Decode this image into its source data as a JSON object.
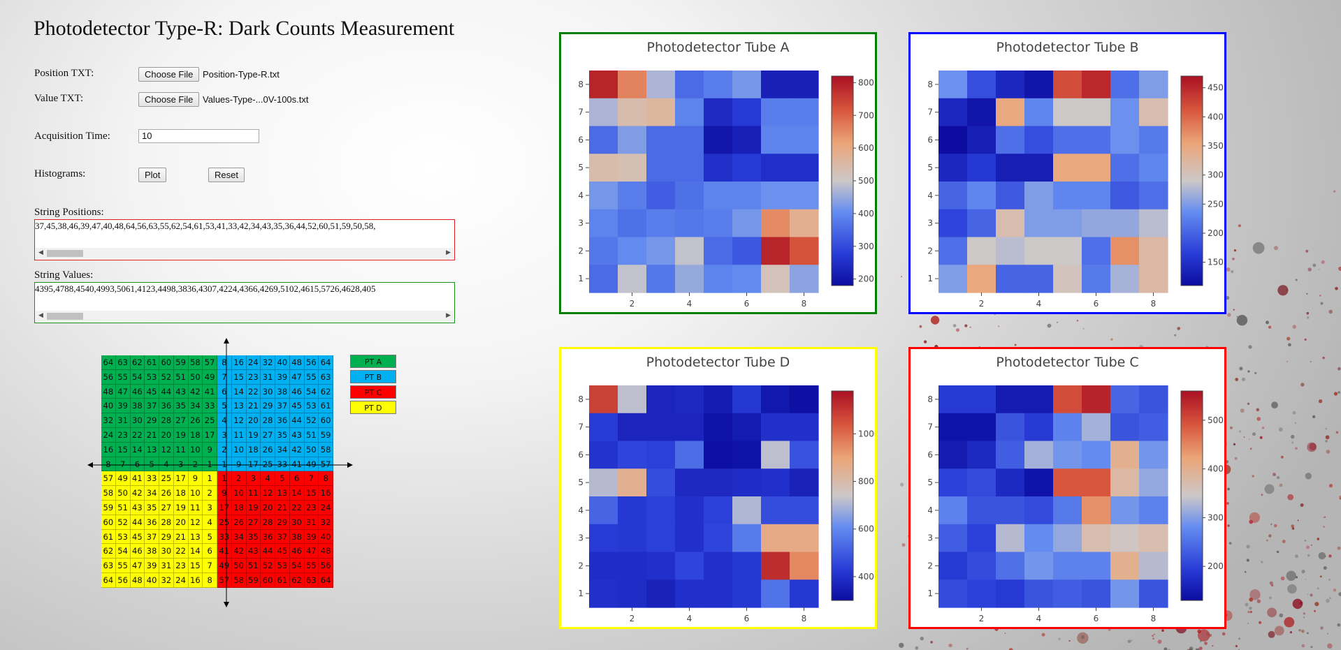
{
  "page": {
    "title": "Photodetector Type-R: Dark Counts Measurement"
  },
  "form": {
    "position_label": "Position TXT:",
    "position_button": "Choose File",
    "position_file": "Position-Type-R.txt",
    "value_label": "Value TXT:",
    "value_button": "Choose File",
    "value_file": "Values-Type-...0V-100s.txt",
    "acq_label": "Acquisition Time:",
    "acq_value": "10",
    "hist_label": "Histograms:",
    "plot_button": "Plot",
    "reset_button": "Reset",
    "str_positions_label": "String Positions:",
    "str_positions_value": "37,45,38,46,39,47,40,48,64,56,63,55,62,54,61,53,41,33,42,34,43,35,36,44,52,60,51,59,50,58,",
    "str_values_label": "String Values:",
    "str_values_value": "4395,4788,4540,4993,5061,4123,4498,3836,4307,4224,4366,4269,5102,4615,5726,4628,405"
  },
  "legend": [
    {
      "label": "PT A",
      "color": "#00b050"
    },
    {
      "label": "PT B",
      "color": "#00b0f0"
    },
    {
      "label": "PT C",
      "color": "#ff0000"
    },
    {
      "label": "PT D",
      "color": "#ffff00"
    }
  ],
  "channel_map": {
    "quadrant_colors": {
      "A": "#00b050",
      "B": "#00b0f0",
      "C": "#ff0000",
      "D": "#ffff00"
    },
    "rows": [
      [
        "64",
        "63",
        "62",
        "61",
        "60",
        "59",
        "58",
        "57",
        "8",
        "16",
        "24",
        "32",
        "40",
        "48",
        "56",
        "64"
      ],
      [
        "56",
        "55",
        "54",
        "53",
        "52",
        "51",
        "50",
        "49",
        "7",
        "15",
        "23",
        "31",
        "39",
        "47",
        "55",
        "63"
      ],
      [
        "48",
        "47",
        "46",
        "45",
        "44",
        "43",
        "42",
        "41",
        "6",
        "14",
        "22",
        "30",
        "38",
        "46",
        "54",
        "62"
      ],
      [
        "40",
        "39",
        "38",
        "37",
        "36",
        "35",
        "34",
        "33",
        "5",
        "13",
        "21",
        "29",
        "37",
        "45",
        "53",
        "61"
      ],
      [
        "32",
        "31",
        "30",
        "29",
        "28",
        "27",
        "26",
        "25",
        "4",
        "12",
        "20",
        "28",
        "36",
        "44",
        "52",
        "60"
      ],
      [
        "24",
        "23",
        "22",
        "21",
        "20",
        "19",
        "18",
        "17",
        "3",
        "11",
        "19",
        "27",
        "35",
        "43",
        "51",
        "59"
      ],
      [
        "16",
        "15",
        "14",
        "13",
        "12",
        "11",
        "10",
        "9",
        "2",
        "10",
        "18",
        "26",
        "34",
        "42",
        "50",
        "58"
      ],
      [
        "8",
        "7",
        "6",
        "5",
        "4",
        "3",
        "2",
        "1",
        "1",
        "9",
        "17",
        "25",
        "33",
        "41",
        "49",
        "57"
      ],
      [
        "57",
        "49",
        "41",
        "33",
        "25",
        "17",
        "9",
        "1",
        "1",
        "2",
        "3",
        "4",
        "5",
        "6",
        "7",
        "8"
      ],
      [
        "58",
        "50",
        "42",
        "34",
        "26",
        "18",
        "10",
        "2",
        "9",
        "10",
        "11",
        "12",
        "13",
        "14",
        "15",
        "16"
      ],
      [
        "59",
        "51",
        "43",
        "35",
        "27",
        "19",
        "11",
        "3",
        "17",
        "18",
        "19",
        "20",
        "21",
        "22",
        "23",
        "24"
      ],
      [
        "60",
        "52",
        "44",
        "36",
        "28",
        "20",
        "12",
        "4",
        "25",
        "26",
        "27",
        "28",
        "29",
        "30",
        "31",
        "32"
      ],
      [
        "61",
        "53",
        "45",
        "37",
        "29",
        "21",
        "13",
        "5",
        "33",
        "34",
        "35",
        "36",
        "37",
        "38",
        "39",
        "40"
      ],
      [
        "62",
        "54",
        "46",
        "38",
        "30",
        "22",
        "14",
        "6",
        "41",
        "42",
        "43",
        "44",
        "45",
        "46",
        "47",
        "48"
      ],
      [
        "63",
        "55",
        "47",
        "39",
        "31",
        "23",
        "15",
        "7",
        "49",
        "50",
        "51",
        "52",
        "53",
        "54",
        "55",
        "56"
      ],
      [
        "64",
        "56",
        "48",
        "40",
        "32",
        "24",
        "16",
        "8",
        "57",
        "58",
        "59",
        "60",
        "61",
        "62",
        "63",
        "64"
      ]
    ]
  },
  "chart_data": [
    {
      "type": "heatmap",
      "title": "Photodetector Tube A",
      "border_color": "#008000",
      "x": [
        1,
        2,
        3,
        4,
        5,
        6,
        7,
        8
      ],
      "y": [
        1,
        2,
        3,
        4,
        5,
        6,
        7,
        8
      ],
      "x_ticks": [
        "2",
        "4",
        "6",
        "8"
      ],
      "y_ticks": [
        "1",
        "2",
        "3",
        "4",
        "5",
        "6",
        "7",
        "8"
      ],
      "zmin": 180,
      "zmax": 820,
      "colorbar_ticks": [
        200,
        300,
        400,
        500,
        600,
        700,
        800
      ],
      "z_rows_top_to_bottom": [
        [
          790,
          660,
          470,
          350,
          380,
          420,
          220,
          220
        ],
        [
          470,
          540,
          560,
          390,
          240,
          270,
          380,
          380
        ],
        [
          350,
          430,
          350,
          350,
          200,
          220,
          390,
          390
        ],
        [
          540,
          530,
          350,
          350,
          250,
          270,
          250,
          250
        ],
        [
          420,
          380,
          330,
          360,
          390,
          390,
          410,
          410
        ],
        [
          390,
          360,
          380,
          370,
          380,
          420,
          650,
          580
        ],
        [
          370,
          400,
          420,
          490,
          350,
          320,
          790,
          720
        ],
        [
          350,
          490,
          370,
          450,
          390,
          400,
          520,
          440
        ]
      ]
    },
    {
      "type": "heatmap",
      "title": "Photodetector Tube B",
      "border_color": "#0000ff",
      "x": [
        1,
        2,
        3,
        4,
        5,
        6,
        7,
        8
      ],
      "y": [
        1,
        2,
        3,
        4,
        5,
        6,
        7,
        8
      ],
      "x_ticks": [
        "2",
        "4",
        "6",
        "8"
      ],
      "y_ticks": [
        "1",
        "2",
        "3",
        "4",
        "5",
        "6",
        "7",
        "8"
      ],
      "zmin": 110,
      "zmax": 470,
      "colorbar_ticks": [
        150,
        200,
        250,
        300,
        350,
        400,
        450
      ],
      "z_rows_top_to_bottom": [
        [
          240,
          180,
          140,
          120,
          420,
          450,
          210,
          250
        ],
        [
          140,
          120,
          350,
          230,
          290,
          290,
          240,
          310
        ],
        [
          110,
          130,
          210,
          180,
          210,
          210,
          240,
          220
        ],
        [
          140,
          160,
          130,
          130,
          350,
          350,
          210,
          230
        ],
        [
          200,
          230,
          190,
          250,
          230,
          230,
          190,
          210
        ],
        [
          170,
          200,
          310,
          250,
          250,
          260,
          260,
          280
        ],
        [
          210,
          290,
          280,
          290,
          290,
          210,
          370,
          320
        ],
        [
          250,
          350,
          200,
          200,
          300,
          220,
          270,
          320
        ]
      ]
    },
    {
      "type": "heatmap",
      "title": "Photodetector Tube D",
      "border_color": "#ffff00",
      "x": [
        1,
        2,
        3,
        4,
        5,
        6,
        7,
        8
      ],
      "y": [
        1,
        2,
        3,
        4,
        5,
        6,
        7,
        8
      ],
      "x_ticks": [
        "2",
        "4",
        "6",
        "8"
      ],
      "y_ticks": [
        "1",
        "2",
        "3",
        "4",
        "5",
        "6",
        "7",
        "8"
      ],
      "zmin": 300,
      "zmax": 1180,
      "colorbar_ticks": [
        400,
        600,
        800,
        1000
      ],
      "z_rows_top_to_bottom": [
        [
          1080,
          720,
          370,
          380,
          340,
          420,
          330,
          310
        ],
        [
          430,
          370,
          370,
          370,
          320,
          340,
          400,
          400
        ],
        [
          410,
          450,
          440,
          540,
          310,
          320,
          720,
          480
        ],
        [
          710,
          850,
          470,
          380,
          380,
          390,
          400,
          360
        ],
        [
          520,
          420,
          440,
          400,
          440,
          700,
          470,
          470
        ],
        [
          430,
          420,
          440,
          400,
          450,
          570,
          870,
          870
        ],
        [
          390,
          390,
          400,
          450,
          400,
          420,
          1120,
          950
        ],
        [
          400,
          390,
          360,
          400,
          400,
          420,
          550,
          420
        ]
      ]
    },
    {
      "type": "heatmap",
      "title": "Photodetector Tube C",
      "border_color": "#ff0000",
      "x": [
        1,
        2,
        3,
        4,
        5,
        6,
        7,
        8
      ],
      "y": [
        1,
        2,
        3,
        4,
        5,
        6,
        7,
        8
      ],
      "x_ticks": [
        "2",
        "4",
        "6",
        "8"
      ],
      "y_ticks": [
        "1",
        "2",
        "3",
        "4",
        "5",
        "6",
        "7",
        "8"
      ],
      "zmin": 130,
      "zmax": 560,
      "colorbar_ticks": [
        200,
        300,
        400,
        500
      ],
      "z_rows_top_to_bottom": [
        [
          190,
          190,
          150,
          150,
          500,
          540,
          240,
          220
        ],
        [
          140,
          140,
          220,
          190,
          270,
          320,
          220,
          230
        ],
        [
          150,
          170,
          230,
          320,
          290,
          280,
          400,
          290
        ],
        [
          200,
          210,
          170,
          140,
          490,
          490,
          380,
          310
        ],
        [
          270,
          220,
          220,
          210,
          260,
          440,
          290,
          270
        ],
        [
          230,
          200,
          330,
          280,
          310,
          370,
          350,
          370
        ],
        [
          190,
          210,
          250,
          290,
          270,
          270,
          400,
          330
        ],
        [
          210,
          200,
          190,
          220,
          230,
          220,
          290,
          220
        ]
      ]
    }
  ]
}
